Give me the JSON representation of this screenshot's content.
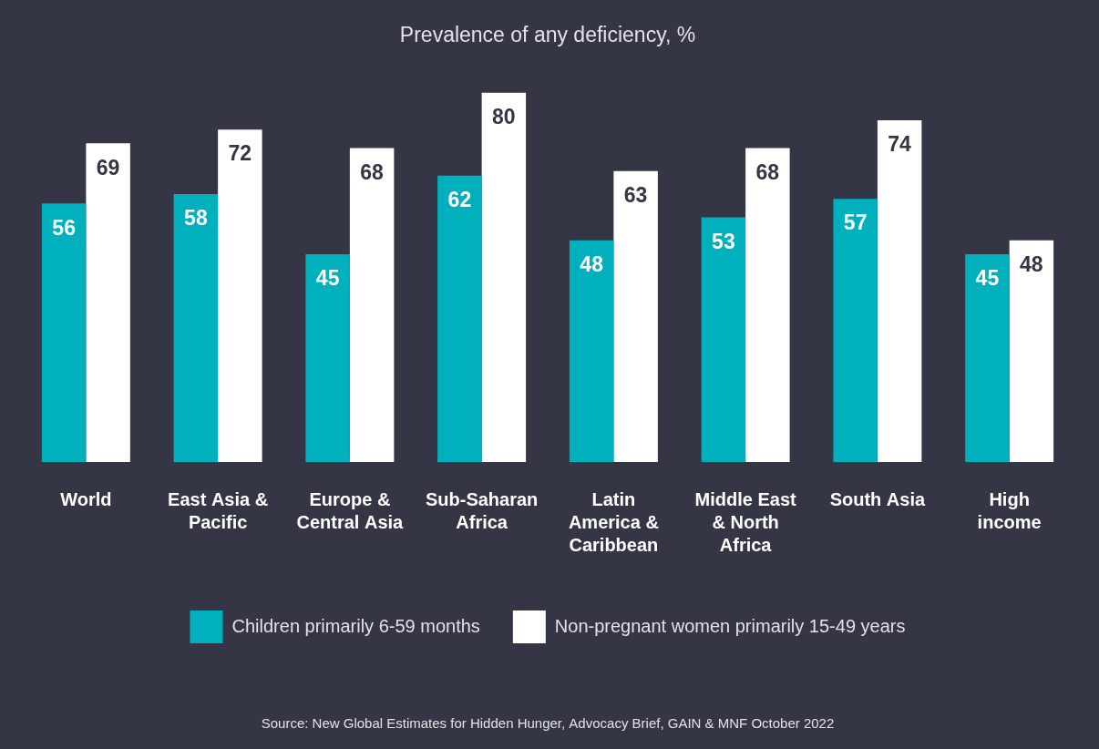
{
  "chart_data": {
    "type": "bar",
    "title": "Prevalence of any deficiency, %",
    "source": "Source: New Global Estimates for Hidden Hunger, Advocacy Brief, GAIN & MNF October 2022",
    "categories": [
      [
        "World"
      ],
      [
        "East Asia &",
        "Pacific"
      ],
      [
        "Europe &",
        "Central Asia"
      ],
      [
        "Sub-Saharan",
        "Africa"
      ],
      [
        "Latin",
        "America &",
        "Caribbean"
      ],
      [
        "Middle East",
        "& North",
        "Africa"
      ],
      [
        "South Asia"
      ],
      [
        "High",
        "income"
      ]
    ],
    "series": [
      {
        "name": "Children primarily 6-59 months",
        "color": "#00b0bd",
        "values": [
          56,
          58,
          45,
          62,
          48,
          53,
          57,
          45
        ]
      },
      {
        "name": "Non-pregnant women primarily 15-49 years",
        "color": "#ffffff",
        "values": [
          69,
          72,
          68,
          80,
          63,
          68,
          74,
          48
        ]
      }
    ],
    "ylim": [
      0,
      80
    ],
    "grid": false,
    "legend": "bottom",
    "data_labels": true,
    "tick_labels": "x"
  }
}
